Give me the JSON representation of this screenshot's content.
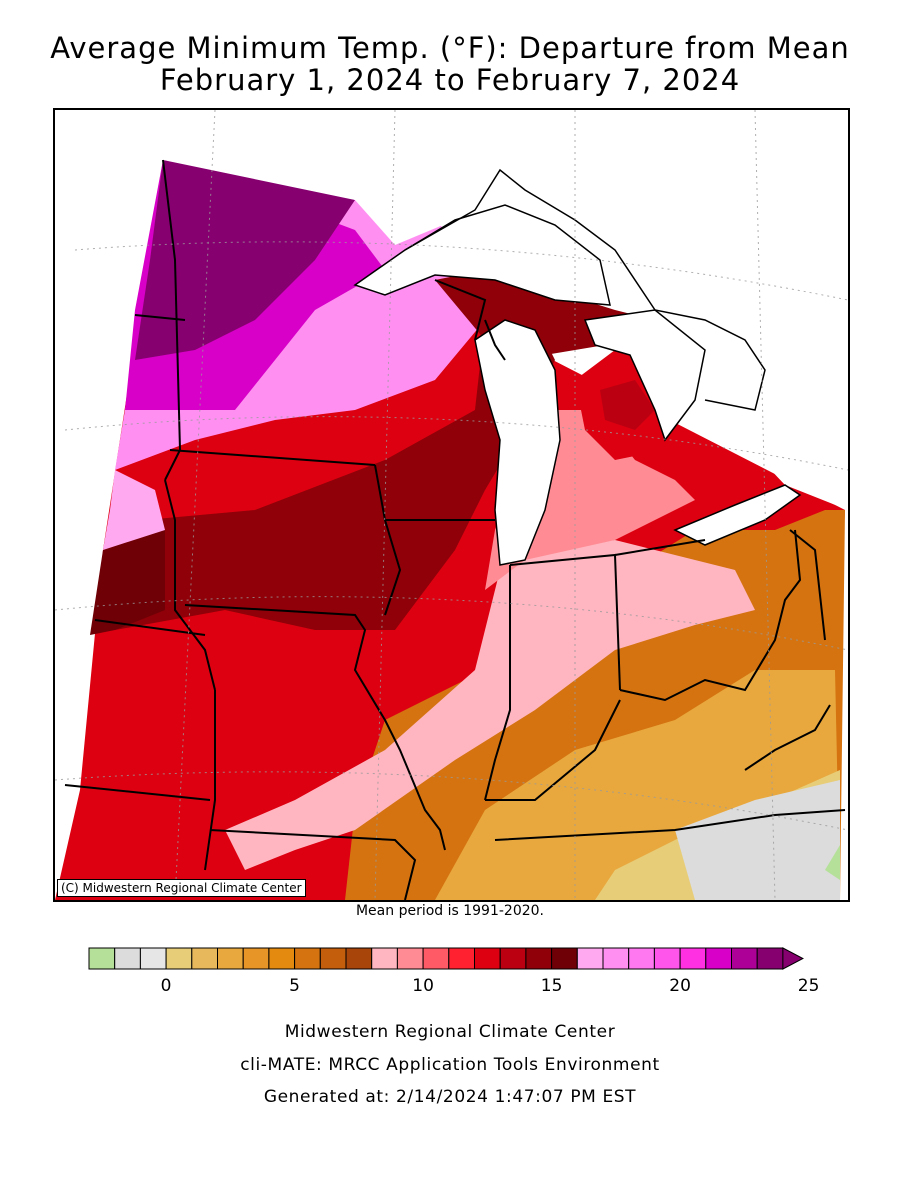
{
  "title_line1": "Average Minimum Temp. (°F): Departure from Mean",
  "title_line2": "February 1, 2024 to February 7, 2024",
  "copyright": "(C) Midwestern Regional Climate Center",
  "mean_period": "Mean period is 1991-2020.",
  "legend": {
    "min": -2,
    "max": 25,
    "step": 1,
    "tick_values": [
      "0",
      "5",
      "10",
      "15",
      "20",
      "25"
    ],
    "colors": [
      "#b5e09a",
      "#dcdcdc",
      "#e6e6e6",
      "#e8cd78",
      "#e8b95c",
      "#e8a83e",
      "#e89528",
      "#e38a0f",
      "#d47310",
      "#c45d0c",
      "#a8450b",
      "#ffb6c1",
      "#ff8c95",
      "#ff5a66",
      "#ff2030",
      "#dd0010",
      "#bb0012",
      "#8f0008",
      "#6e0006",
      "#ffaaf0",
      "#ff90f2",
      "#ff78f0",
      "#ff55ea",
      "#ff30e2",
      "#d800c8",
      "#ad0097",
      "#870070"
    ]
  },
  "footer": {
    "line1": "Midwestern Regional Climate Center",
    "line2": "cli-MATE: MRCC Application Tools Environment",
    "line3": "Generated at: 2/14/2024 1:47:07 PM EST"
  }
}
